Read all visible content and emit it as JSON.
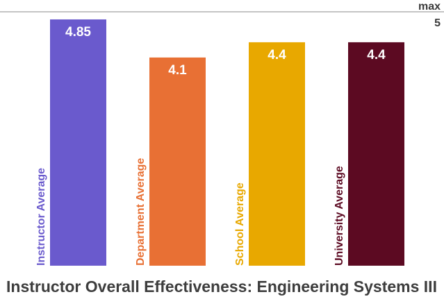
{
  "chart_data": {
    "type": "bar",
    "title": "Instructor Overall Effectiveness: Engineering Systems III",
    "categories": [
      "Instructor Average",
      "Department Average",
      "School Average",
      "University Average"
    ],
    "values": [
      4.85,
      4.1,
      4.4,
      4.4
    ],
    "value_labels": [
      "4.85",
      "4.1",
      "4.4",
      "4.4"
    ],
    "colors": [
      "#6a5acd",
      "#e87034",
      "#e8a800",
      "#5c0a22"
    ],
    "ylim": [
      0,
      5
    ],
    "max_label": "max",
    "max_value_label": "5",
    "grid": false,
    "legend": "none"
  }
}
